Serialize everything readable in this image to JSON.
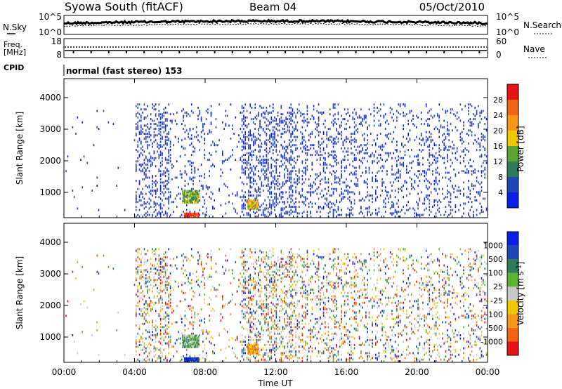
{
  "header": {
    "title": "Syowa South (fitACF)",
    "beam": "Beam 04",
    "date": "05/Oct/2010"
  },
  "noise_panel": {
    "left_label": "N.Sky",
    "right_label": "N.Search",
    "left_ticks": [
      "10^5",
      "10^0"
    ],
    "right_ticks": [
      "10^5",
      "10^0"
    ]
  },
  "freq_panel": {
    "left_label_1": "Freq.",
    "left_label_2": "[MHz]",
    "right_label": "Nave",
    "left_ticks": [
      "18",
      "8"
    ],
    "right_ticks": [
      "60",
      "0"
    ]
  },
  "cpid": {
    "label": "CPID",
    "value": "normal (fast stereo) 153"
  },
  "colors": {
    "power_scale": [
      "#0a1ee6",
      "#1e46b4",
      "#2e7d5a",
      "#5aa532",
      "#f0c800",
      "#f59614",
      "#f06414",
      "#e61414"
    ],
    "velocity_scale": [
      "#e61414",
      "#f06414",
      "#f59614",
      "#f0c800",
      "#c8c8c8",
      "#5ab432",
      "#2e7d5a",
      "#1e46b4",
      "#0a1ee6"
    ]
  },
  "chart_data": [
    {
      "type": "heatmap",
      "name": "power",
      "ylabel": "Slant Range [km]",
      "y_ticks": [
        "1000",
        "2000",
        "3000",
        "4000"
      ],
      "ylim": [
        200,
        4600
      ],
      "colorbar_label": "Power [dB]",
      "colorbar_ticks": [
        "4",
        "8",
        "12",
        "16",
        "20",
        "24",
        "28"
      ],
      "colorbar_range": [
        0,
        32
      ]
    },
    {
      "type": "heatmap",
      "name": "velocity",
      "ylabel": "Slant Range [km]",
      "y_ticks": [
        "1000",
        "2000",
        "3000",
        "4000"
      ],
      "ylim": [
        200,
        4600
      ],
      "colorbar_label": "Velocity [m s^-1]",
      "colorbar_ticks": [
        "-1000",
        "-500",
        "-100",
        "-25",
        "25",
        "100",
        "500",
        "1000"
      ],
      "xlabel": "Time UT",
      "x_ticks": [
        "00:00",
        "04:00",
        "08:00",
        "12:00",
        "16:00",
        "20:00",
        "00:00"
      ],
      "xlim_hours": [
        0,
        24
      ]
    }
  ]
}
